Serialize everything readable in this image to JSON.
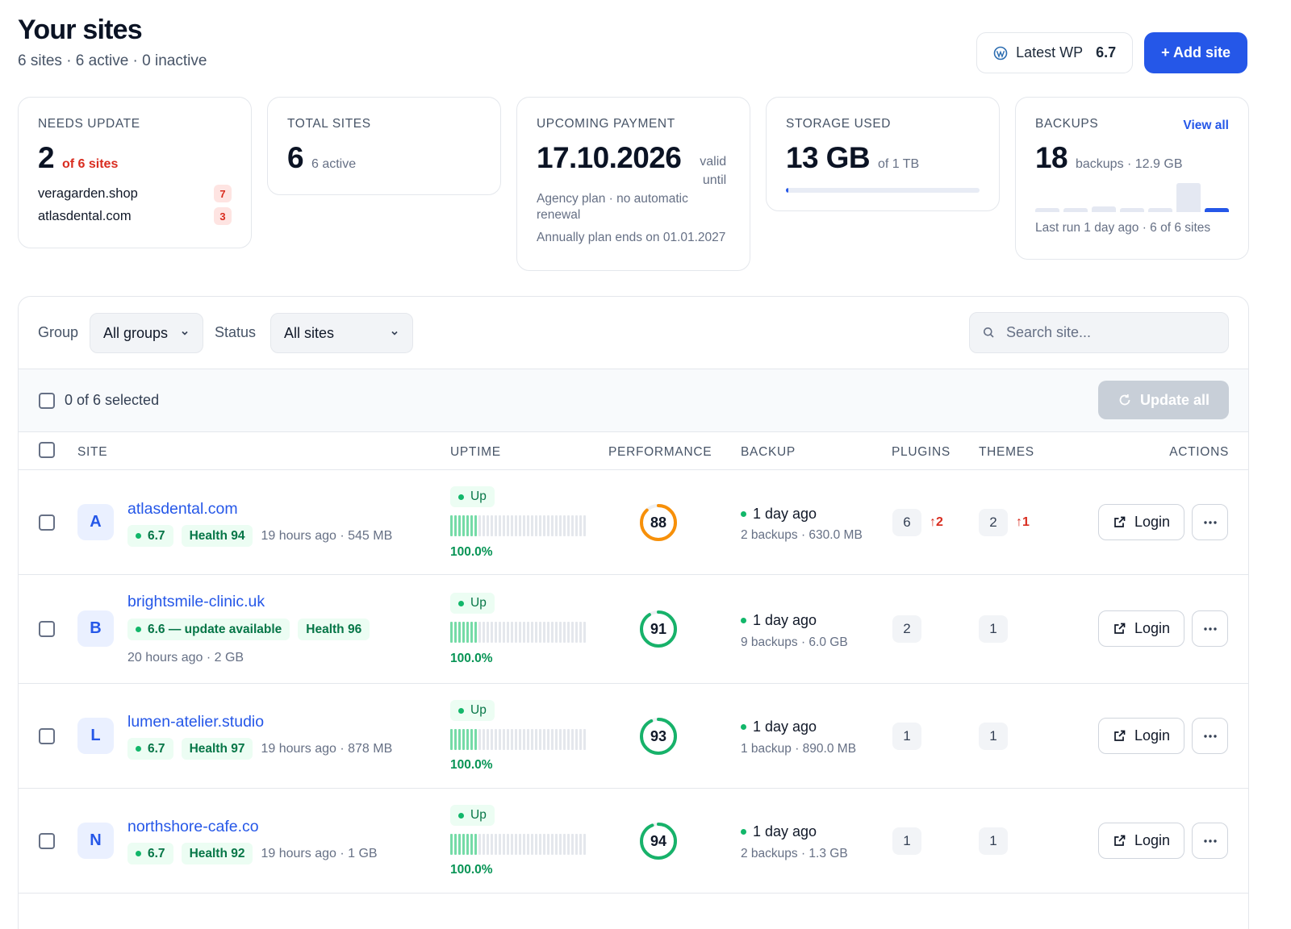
{
  "header": {
    "title": "Your sites",
    "subtitle": "6 sites · 6 active · 0 inactive",
    "wp_label": "Latest WP",
    "wp_version": "6.7",
    "add_site": "+ Add site"
  },
  "cards": {
    "needs_update": {
      "label": "NEEDS UPDATE",
      "value": "2",
      "sub": "of 6 sites",
      "items": [
        {
          "name": "veragarden.shop",
          "count": "7"
        },
        {
          "name": "atlasdental.com",
          "count": "3"
        }
      ]
    },
    "total_sites": {
      "label": "TOTAL SITES",
      "value": "6",
      "sub": "6 active"
    },
    "payment": {
      "label": "UPCOMING PAYMENT",
      "value": "17.10.2026",
      "sub": "valid until",
      "note1": "Agency plan · no automatic renewal",
      "note2": "Annually plan ends on 01.01.2027"
    },
    "storage": {
      "label": "STORAGE USED",
      "value": "13 GB",
      "sub": "of 1 TB",
      "used_fraction": 0.013
    },
    "backups": {
      "label": "BACKUPS",
      "view_all": "View all",
      "value": "18",
      "sub": "backups · 12.9 GB",
      "bars": [
        0.12,
        0.12,
        0.2,
        0.12,
        0.12,
        1.0,
        0.12
      ],
      "footer": "Last run 1 day ago · 6 of 6 sites"
    }
  },
  "filters": {
    "group_label": "Group",
    "group_value": "All groups",
    "status_label": "Status",
    "status_value": "All sites",
    "search_placeholder": "Search site..."
  },
  "selection": {
    "text": "0 of 6 selected",
    "update_all": "Update all"
  },
  "columns": {
    "site": "SITE",
    "uptime": "UPTIME",
    "performance": "PERFORMANCE",
    "backup": "BACKUP",
    "plugins": "PLUGINS",
    "themes": "THEMES",
    "actions": "ACTIONS"
  },
  "rows": [
    {
      "initial": "A",
      "name": "atlasdental.com",
      "version": "6.7",
      "health": "Health 94",
      "meta": "19 hours ago · 545 MB",
      "uptime_status": "Up",
      "uptime_pct": "100.0%",
      "score": "88",
      "score_color": "#f79009",
      "backup_when": "1 day ago",
      "backup_detail": "2 backups · 630.0 MB",
      "plugins": "6",
      "plugins_updates": "↑2",
      "themes": "2",
      "themes_updates": "↑1",
      "login": "Login"
    },
    {
      "initial": "B",
      "name": "brightsmile-clinic.uk",
      "version": "6.6 — update available",
      "health": "Health 96",
      "meta": "20 hours ago · 2 GB",
      "uptime_status": "Up",
      "uptime_pct": "100.0%",
      "score": "91",
      "score_color": "#17b26a",
      "backup_when": "1 day ago",
      "backup_detail": "9 backups · 6.0 GB",
      "plugins": "2",
      "themes": "1",
      "login": "Login"
    },
    {
      "initial": "L",
      "name": "lumen-atelier.studio",
      "version": "6.7",
      "health": "Health 97",
      "meta": "19 hours ago · 878 MB",
      "uptime_status": "Up",
      "uptime_pct": "100.0%",
      "score": "93",
      "score_color": "#17b26a",
      "backup_when": "1 day ago",
      "backup_detail": "1 backup · 890.0 MB",
      "plugins": "1",
      "themes": "1",
      "login": "Login"
    },
    {
      "initial": "N",
      "name": "northshore-cafe.co",
      "version": "6.7",
      "health": "Health 92",
      "meta": "19 hours ago · 1 GB",
      "uptime_status": "Up",
      "uptime_pct": "100.0%",
      "score": "94",
      "score_color": "#17b26a",
      "backup_when": "1 day ago",
      "backup_detail": "2 backups · 1.3 GB",
      "plugins": "1",
      "themes": "1",
      "login": "Login"
    }
  ]
}
